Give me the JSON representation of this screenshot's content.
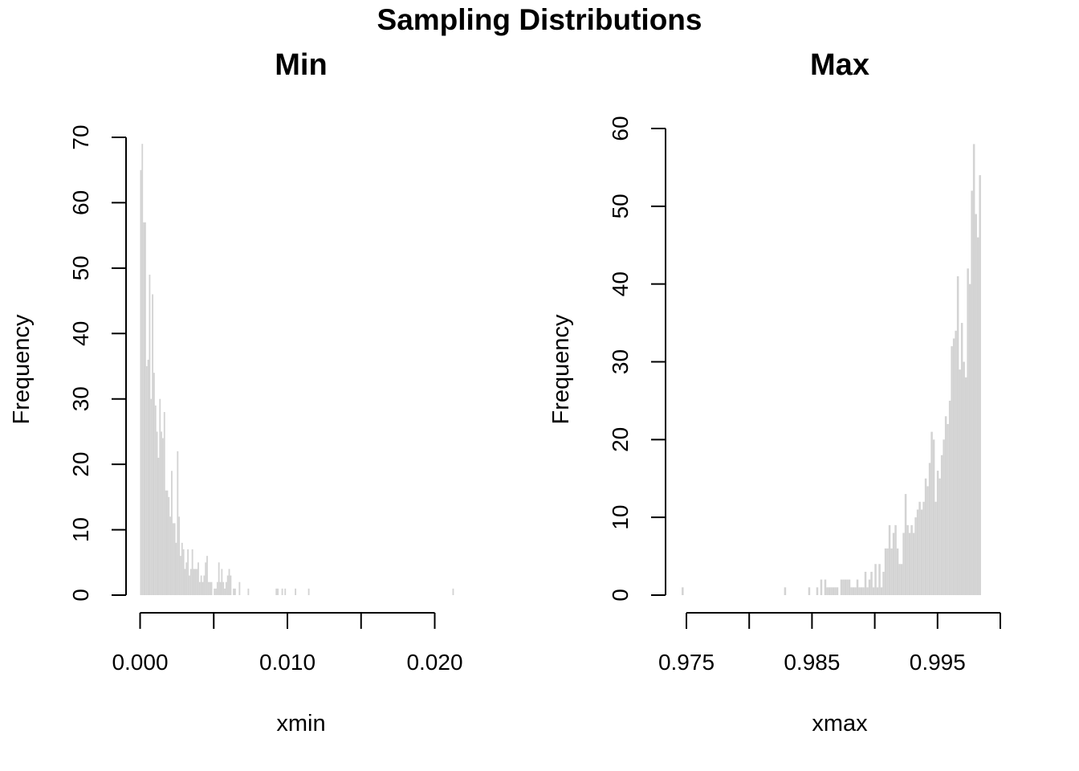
{
  "figure": {
    "title": "Sampling Distributions"
  },
  "chart_data": [
    {
      "type": "bar",
      "subtype": "histogram",
      "title": "Min",
      "xlabel": "xmin",
      "ylabel": "Frequency",
      "bar_color": "#d3d3d3",
      "grid": false,
      "xlim": [
        0,
        0.022
      ],
      "ylim": [
        0,
        70
      ],
      "xticks": [
        0,
        0.005,
        0.01,
        0.015,
        0.02
      ],
      "xtick_labels": [
        "0.000",
        "",
        "0.010",
        "",
        "0.020"
      ],
      "yticks": [
        0,
        10,
        20,
        30,
        40,
        50,
        60,
        70
      ],
      "ytick_labels": [
        "0",
        "10",
        "20",
        "30",
        "40",
        "50",
        "60",
        "70"
      ],
      "bin_start": 0,
      "bin_width": 0.0001,
      "values": [
        65,
        69,
        57,
        57,
        35,
        36,
        49,
        30,
        46,
        34,
        29,
        25,
        21,
        30,
        25,
        24,
        28,
        16,
        16,
        15,
        12,
        19,
        11,
        11,
        8,
        22,
        12,
        6,
        8,
        7,
        4,
        5,
        7,
        3,
        4,
        7,
        4,
        4,
        4,
        5,
        2,
        3,
        2,
        3,
        5,
        6,
        2,
        2,
        2,
        0,
        1,
        1,
        2,
        5,
        2,
        4,
        2,
        1,
        2,
        3,
        4,
        3,
        0,
        1,
        1,
        0,
        0,
        2,
        0,
        0,
        0,
        0,
        0,
        1,
        0,
        0,
        0,
        0,
        0,
        0,
        0,
        0,
        0,
        0,
        0,
        0,
        0,
        0,
        0,
        0,
        0,
        0,
        1,
        1,
        0,
        0,
        1,
        0,
        1,
        0,
        0,
        0,
        0,
        0,
        0,
        1,
        0,
        0,
        0,
        0,
        0,
        0,
        0,
        0,
        1,
        0,
        0,
        0,
        0,
        0,
        0,
        0,
        0,
        0,
        0,
        0,
        0,
        0,
        0,
        0,
        0,
        0,
        0,
        0,
        0,
        0,
        0,
        0,
        0,
        0,
        0,
        0,
        0,
        0,
        0,
        0,
        0,
        0,
        0,
        0,
        0,
        0,
        0,
        0,
        0,
        0,
        0,
        0,
        0,
        0,
        0,
        0,
        0,
        0,
        0,
        0,
        0,
        0,
        0,
        0,
        0,
        0,
        0,
        0,
        0,
        0,
        0,
        0,
        0,
        0,
        0,
        0,
        0,
        0,
        0,
        0,
        0,
        0,
        0,
        0,
        0,
        0,
        0,
        0,
        0,
        0,
        0,
        0,
        0,
        0,
        0,
        0,
        0,
        0,
        0,
        0,
        0,
        0,
        0,
        0,
        0,
        0,
        1
      ]
    },
    {
      "type": "bar",
      "subtype": "histogram",
      "title": "Max",
      "xlabel": "xmax",
      "ylabel": "Frequency",
      "bar_color": "#d3d3d3",
      "grid": false,
      "xlim": [
        0.9745,
        1.0
      ],
      "ylim": [
        0,
        60
      ],
      "xticks": [
        0.975,
        0.98,
        0.985,
        0.99,
        0.995,
        1.0
      ],
      "xtick_labels": [
        "0.975",
        "",
        "0.985",
        "",
        "0.995",
        ""
      ],
      "yticks": [
        0,
        10,
        20,
        30,
        40,
        50,
        60
      ],
      "ytick_labels": [
        "0",
        "10",
        "20",
        "30",
        "40",
        "50",
        "60"
      ],
      "bin_start": 0.9735,
      "bin_width": 0.00016,
      "values": [
        0,
        0,
        0,
        0,
        0,
        0,
        0,
        1,
        0,
        0,
        0,
        0,
        0,
        0,
        0,
        0,
        0,
        0,
        0,
        0,
        0,
        0,
        0,
        0,
        0,
        0,
        0,
        0,
        0,
        0,
        0,
        0,
        0,
        0,
        0,
        0,
        0,
        0,
        0,
        0,
        0,
        0,
        0,
        0,
        0,
        0,
        0,
        0,
        0,
        0,
        0,
        0,
        0,
        0,
        0,
        0,
        0,
        0,
        1,
        0,
        0,
        0,
        0,
        0,
        0,
        0,
        0,
        0,
        0,
        0,
        1,
        0,
        0,
        0,
        1,
        0,
        2,
        0,
        2,
        1,
        1,
        1,
        1,
        1,
        1,
        0,
        2,
        2,
        2,
        2,
        2,
        1,
        1,
        1,
        2,
        1,
        1,
        1,
        3,
        1,
        2,
        3,
        1,
        4,
        1,
        4,
        1,
        3,
        6,
        6,
        9,
        6,
        8,
        9,
        6,
        4,
        4,
        8,
        13,
        9,
        8,
        9,
        8,
        10,
        11,
        12,
        11,
        12,
        15,
        14,
        17,
        21,
        20,
        12,
        16,
        15,
        18,
        20,
        23,
        22,
        25,
        32,
        33,
        34,
        41,
        29,
        35,
        30,
        28,
        42,
        40,
        52,
        58,
        49,
        46,
        54
      ]
    }
  ]
}
